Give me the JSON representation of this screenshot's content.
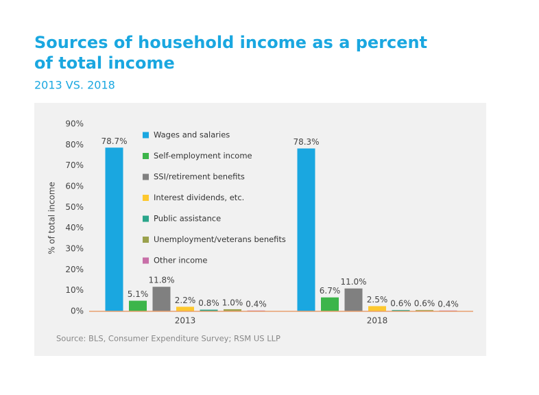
{
  "chart_data": {
    "type": "bar",
    "title": "Sources of household income as a percent of total income",
    "subtitle": "2013 VS. 2018",
    "y_label": "% of total income",
    "source": "Source: BLS, Consumer Expenditure Survey; RSM US LLP",
    "categories": [
      "2013",
      "2018"
    ],
    "series": [
      {
        "name": "Wages and salaries",
        "color": "#1aa7e0",
        "values": [
          78.7,
          78.3
        ],
        "value_labels": [
          "78.7%",
          "78.3%"
        ]
      },
      {
        "name": "Self-employment income",
        "color": "#3cb54a",
        "values": [
          5.1,
          6.7
        ],
        "value_labels": [
          "5.1%",
          "6.7%"
        ]
      },
      {
        "name": "SSI/retirement benefits",
        "color": "#808080",
        "values": [
          11.8,
          11.0
        ],
        "value_labels": [
          "11.8%",
          "11.0%"
        ]
      },
      {
        "name": "Interest dividends, etc.",
        "color": "#fdc82f",
        "values": [
          2.2,
          2.5
        ],
        "value_labels": [
          "2.2%",
          "2.5%"
        ]
      },
      {
        "name": "Public assistance",
        "color": "#2aa58a",
        "values": [
          0.8,
          0.6
        ],
        "value_labels": [
          "0.8%",
          "0.6%"
        ]
      },
      {
        "name": "Unemployment/veterans benefits",
        "color": "#9aa14c",
        "values": [
          1.0,
          0.6
        ],
        "value_labels": [
          "1.0%",
          "0.6%"
        ]
      },
      {
        "name": "Other income",
        "color": "#c86fa8",
        "values": [
          0.4,
          0.4
        ],
        "value_labels": [
          "0.4%",
          "0.4%"
        ]
      }
    ],
    "ylim": [
      0,
      90
    ],
    "yticks": [
      {
        "value": 0,
        "label": "0%"
      },
      {
        "value": 10,
        "label": "10%"
      },
      {
        "value": 20,
        "label": "20%"
      },
      {
        "value": 30,
        "label": "30%"
      },
      {
        "value": 40,
        "label": "40%"
      },
      {
        "value": 50,
        "label": "50%"
      },
      {
        "value": 60,
        "label": "60%"
      },
      {
        "value": 70,
        "label": "70%"
      },
      {
        "value": 80,
        "label": "80%"
      },
      {
        "value": 90,
        "label": "90%"
      }
    ]
  }
}
